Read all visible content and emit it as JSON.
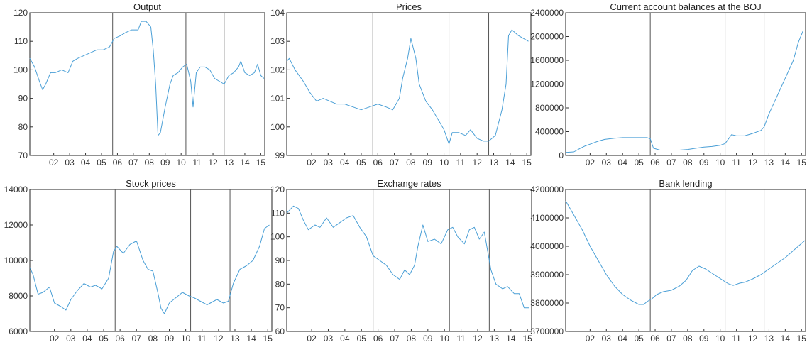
{
  "chart_data": [
    {
      "type": "line",
      "title": "Output",
      "ylim": [
        70,
        120
      ],
      "yticks": [
        "70",
        "80",
        "90",
        "100",
        "110",
        "120"
      ],
      "xlim": [
        2001.0,
        2015.75
      ],
      "xticks": [
        "02",
        "03",
        "04",
        "05",
        "06",
        "07",
        "08",
        "09",
        "10",
        "11",
        "12",
        "13",
        "14",
        "15"
      ],
      "vlines": [
        2006.2,
        2010.8,
        2013.2
      ],
      "color": "#4a9fd6",
      "series": [
        {
          "x": [
            2001.0,
            2001.3,
            2001.6,
            2001.8,
            2002.0,
            2002.3,
            2002.6,
            2003.0,
            2003.4,
            2003.7,
            2004.0,
            2004.4,
            2004.8,
            2005.2,
            2005.6,
            2006.0,
            2006.3,
            2006.7,
            2007.0,
            2007.4,
            2007.8,
            2008.0,
            2008.3,
            2008.6,
            2008.75,
            2008.9,
            2009.05,
            2009.2,
            2009.5,
            2009.8,
            2010.0,
            2010.3,
            2010.6,
            2010.85,
            2011.1,
            2011.25,
            2011.45,
            2011.7,
            2012.0,
            2012.3,
            2012.6,
            2012.9,
            2013.2,
            2013.5,
            2013.8,
            2014.1,
            2014.25,
            2014.5,
            2014.8,
            2015.1,
            2015.3,
            2015.5,
            2015.7
          ],
          "y": [
            104,
            101,
            96,
            93,
            95,
            99,
            99,
            100,
            99,
            103,
            104,
            105,
            106,
            107,
            107,
            108,
            111,
            112,
            113,
            114,
            114,
            117,
            117,
            115,
            107,
            95,
            77,
            78,
            87,
            95,
            98,
            99,
            101,
            102,
            96,
            87,
            99,
            101,
            101,
            100,
            97,
            96,
            95,
            98,
            99,
            101,
            103,
            99,
            98,
            99,
            102,
            98,
            97
          ]
        }
      ]
    },
    {
      "type": "line",
      "title": "Prices",
      "ylim": [
        99,
        104
      ],
      "yticks": [
        "99",
        "100",
        "101",
        "102",
        "103",
        "104"
      ],
      "xlim": [
        2001.0,
        2015.75
      ],
      "xticks": [
        "02",
        "03",
        "04",
        "05",
        "06",
        "07",
        "08",
        "09",
        "10",
        "11",
        "12",
        "13",
        "14",
        "15"
      ],
      "vlines": [
        2006.2,
        2010.8,
        2013.2
      ],
      "color": "#4a9fd6",
      "series": [
        {
          "x": [
            2001.0,
            2001.15,
            2001.5,
            2002.0,
            2002.4,
            2002.8,
            2003.2,
            2003.6,
            2004.0,
            2004.5,
            2005.0,
            2005.5,
            2006.0,
            2006.5,
            2007.0,
            2007.4,
            2007.8,
            2008.0,
            2008.3,
            2008.5,
            2008.8,
            2009.0,
            2009.4,
            2009.8,
            2010.2,
            2010.5,
            2010.8,
            2011.0,
            2011.4,
            2011.8,
            2012.1,
            2012.5,
            2012.9,
            2013.2,
            2013.6,
            2014.0,
            2014.25,
            2014.4,
            2014.6,
            2015.0,
            2015.3,
            2015.6
          ],
          "y": [
            102.3,
            102.4,
            102.0,
            101.6,
            101.2,
            100.9,
            101.0,
            100.9,
            100.8,
            100.8,
            100.7,
            100.6,
            100.7,
            100.8,
            100.7,
            100.6,
            101.0,
            101.7,
            102.4,
            103.1,
            102.4,
            101.5,
            100.9,
            100.6,
            100.2,
            99.9,
            99.4,
            99.8,
            99.8,
            99.7,
            99.9,
            99.6,
            99.5,
            99.5,
            99.7,
            100.6,
            101.5,
            103.2,
            103.4,
            103.2,
            103.1,
            103.0
          ]
        }
      ]
    },
    {
      "type": "line",
      "title": "Current account balances at the BOJ",
      "ylim": [
        0,
        2400000
      ],
      "yticks": [
        "0",
        "400000",
        "800000",
        "1200000",
        "1600000",
        "2000000",
        "2400000"
      ],
      "xlim": [
        2001.0,
        2015.75
      ],
      "xticks": [
        "02",
        "03",
        "04",
        "05",
        "06",
        "07",
        "08",
        "09",
        "10",
        "11",
        "12",
        "13",
        "14",
        "15"
      ],
      "vlines": [
        2006.2,
        2010.8,
        2013.2
      ],
      "color": "#4a9fd6",
      "series": [
        {
          "x": [
            2001.0,
            2001.5,
            2001.9,
            2002.2,
            2002.6,
            2003.0,
            2003.4,
            2004.0,
            2004.5,
            2005.0,
            2005.5,
            2006.0,
            2006.2,
            2006.4,
            2006.8,
            2007.5,
            2008.0,
            2008.5,
            2009.0,
            2009.5,
            2010.0,
            2010.5,
            2010.8,
            2011.2,
            2011.5,
            2012.0,
            2012.5,
            2013.0,
            2013.2,
            2013.5,
            2014.0,
            2014.5,
            2015.0,
            2015.3,
            2015.6
          ],
          "y": [
            50000,
            60000,
            120000,
            160000,
            200000,
            240000,
            270000,
            290000,
            300000,
            300000,
            300000,
            300000,
            280000,
            120000,
            90000,
            90000,
            90000,
            100000,
            120000,
            140000,
            150000,
            170000,
            200000,
            350000,
            330000,
            330000,
            370000,
            420000,
            480000,
            700000,
            1000000,
            1300000,
            1600000,
            1900000,
            2100000
          ]
        }
      ]
    },
    {
      "type": "line",
      "title": "Stock prices",
      "ylim": [
        6000,
        14000
      ],
      "yticks": [
        "6000",
        "8000",
        "10000",
        "12000",
        "14000"
      ],
      "xlim": [
        2001.0,
        2015.75
      ],
      "xticks": [
        "02",
        "03",
        "04",
        "05",
        "06",
        "07",
        "08",
        "09",
        "10",
        "11",
        "12",
        "13",
        "14",
        "15"
      ],
      "vlines": [
        2006.2,
        2010.8,
        2013.2
      ],
      "color": "#4a9fd6",
      "series": [
        {
          "x": [
            2001.0,
            2001.2,
            2001.5,
            2001.8,
            2002.2,
            2002.5,
            2002.9,
            2003.2,
            2003.5,
            2003.9,
            2004.3,
            2004.7,
            2005.0,
            2005.4,
            2005.8,
            2006.1,
            2006.3,
            2006.7,
            2007.1,
            2007.5,
            2007.9,
            2008.2,
            2008.5,
            2008.8,
            2009.0,
            2009.2,
            2009.5,
            2009.9,
            2010.3,
            2010.7,
            2011.0,
            2011.4,
            2011.8,
            2012.0,
            2012.4,
            2012.8,
            2013.1,
            2013.4,
            2013.8,
            2014.2,
            2014.6,
            2015.0,
            2015.3,
            2015.6
          ],
          "y": [
            9600,
            9200,
            8100,
            8200,
            8500,
            7600,
            7400,
            7200,
            7800,
            8300,
            8700,
            8500,
            8600,
            8400,
            9000,
            10500,
            10800,
            10400,
            10900,
            11100,
            10000,
            9500,
            9400,
            8200,
            7300,
            7000,
            7600,
            7900,
            8200,
            8000,
            7900,
            7700,
            7500,
            7600,
            7800,
            7600,
            7700,
            8700,
            9500,
            9700,
            10000,
            10800,
            11800,
            12000
          ]
        }
      ]
    },
    {
      "type": "line",
      "title": "Exchange rates",
      "ylim": [
        60,
        120
      ],
      "yticks": [
        "60",
        "70",
        "80",
        "90",
        "100",
        "110",
        "120"
      ],
      "xlim": [
        2001.0,
        2015.75
      ],
      "xticks": [
        "02",
        "03",
        "04",
        "05",
        "06",
        "07",
        "08",
        "09",
        "10",
        "11",
        "12",
        "13",
        "14",
        "15"
      ],
      "vlines": [
        2006.2,
        2010.8,
        2013.2
      ],
      "color": "#4a9fd6",
      "series": [
        {
          "x": [
            2001.0,
            2001.4,
            2001.7,
            2002.0,
            2002.3,
            2002.7,
            2003.0,
            2003.4,
            2003.8,
            2004.2,
            2004.6,
            2005.0,
            2005.4,
            2005.8,
            2006.2,
            2006.6,
            2007.0,
            2007.4,
            2007.8,
            2008.1,
            2008.4,
            2008.7,
            2008.9,
            2009.2,
            2009.5,
            2009.9,
            2010.3,
            2010.7,
            2011.0,
            2011.3,
            2011.7,
            2012.0,
            2012.3,
            2012.6,
            2012.9,
            2013.0,
            2013.3,
            2013.6,
            2014.0,
            2014.3,
            2014.7,
            2015.0,
            2015.3,
            2015.6
          ],
          "y": [
            110,
            113,
            112,
            107,
            103,
            105,
            104,
            108,
            104,
            106,
            108,
            109,
            104,
            100,
            92,
            90,
            88,
            84,
            82,
            86,
            84,
            88,
            96,
            105,
            98,
            99,
            97,
            103,
            104,
            100,
            97,
            103,
            104,
            99,
            102,
            98,
            86,
            80,
            78,
            79,
            76,
            76,
            70,
            70
          ]
        }
      ]
    },
    {
      "type": "line",
      "title": "Bank lending",
      "ylim": [
        3700000,
        4200000
      ],
      "yticks": [
        "3700000",
        "3800000",
        "3900000",
        "4000000",
        "4100000",
        "4200000"
      ],
      "xlim": [
        2001.0,
        2015.75
      ],
      "xticks": [
        "02",
        "03",
        "04",
        "05",
        "06",
        "07",
        "08",
        "09",
        "10",
        "11",
        "12",
        "13",
        "14",
        "15"
      ],
      "vlines": [
        2006.2,
        2010.8,
        2013.2
      ],
      "color": "#4a9fd6",
      "series": [
        {
          "x": [
            2001.0,
            2001.5,
            2002.0,
            2002.5,
            2003.0,
            2003.5,
            2004.0,
            2004.5,
            2005.0,
            2005.5,
            2005.8,
            2006.0,
            2006.3,
            2006.6,
            2007.0,
            2007.5,
            2008.0,
            2008.4,
            2008.8,
            2009.2,
            2009.6,
            2010.0,
            2010.4,
            2010.8,
            2011.0,
            2011.3,
            2011.7,
            2012.0,
            2012.5,
            2013.0,
            2013.5,
            2014.0,
            2014.5,
            2015.0,
            2015.4,
            2015.7
          ],
          "y": [
            4160000,
            4110000,
            4060000,
            4000000,
            3950000,
            3900000,
            3860000,
            3830000,
            3810000,
            3795000,
            3795000,
            3805000,
            3815000,
            3830000,
            3840000,
            3845000,
            3860000,
            3880000,
            3915000,
            3930000,
            3920000,
            3905000,
            3890000,
            3875000,
            3868000,
            3862000,
            3870000,
            3873000,
            3885000,
            3900000,
            3920000,
            3940000,
            3960000,
            3985000,
            4005000,
            4020000
          ]
        }
      ]
    }
  ]
}
